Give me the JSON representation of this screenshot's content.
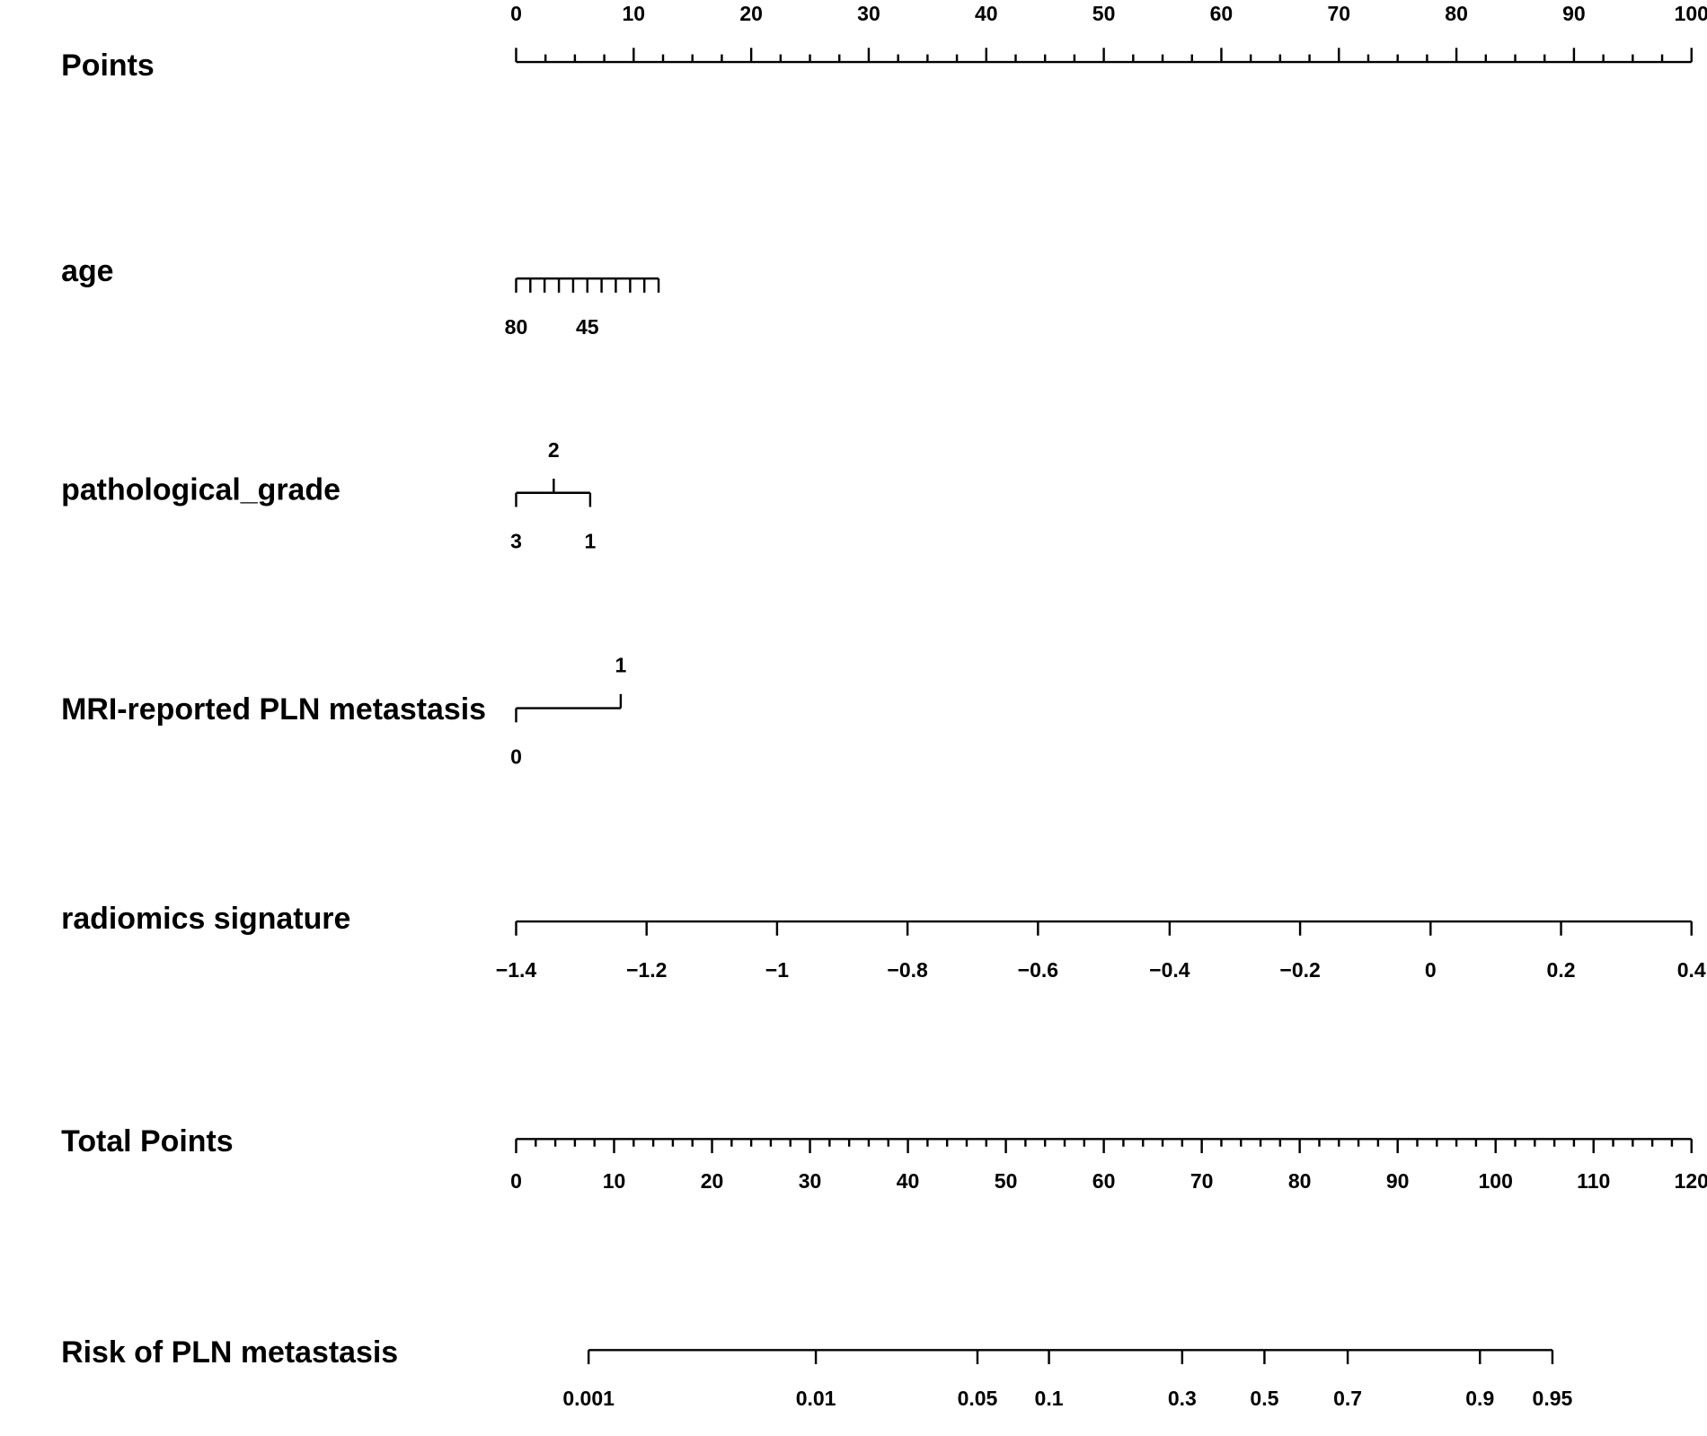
{
  "chart_data": {
    "type": "nomogram",
    "axes": [
      {
        "name": "Points",
        "xlim": [
          0,
          100
        ],
        "xticks": [
          0,
          10,
          20,
          30,
          40,
          50,
          60,
          70,
          80,
          90,
          100
        ],
        "minor_ticks": [
          2.5,
          5,
          7.5,
          12.5,
          15,
          17.5,
          22.5,
          25,
          27.5,
          32.5,
          35,
          37.5,
          42.5,
          45,
          47.5,
          52.5,
          55,
          57.5,
          62.5,
          65,
          67.5,
          72.5,
          75,
          77.5,
          82.5,
          85,
          87.5,
          92.5,
          95,
          97.5
        ]
      },
      {
        "name": "age",
        "labels": [
          80,
          null,
          null,
          null,
          null,
          45,
          null,
          null,
          null,
          null,
          null
        ],
        "points": [
          0,
          1.21,
          2.42,
          3.64,
          4.85,
          6.06,
          7.27,
          8.48,
          9.7,
          10.91,
          12.12
        ]
      },
      {
        "name": "pathological_grade",
        "labels": [
          3,
          2,
          1
        ],
        "points": [
          0,
          3.2,
          6.3
        ],
        "label_position": [
          "below",
          "above",
          "below"
        ]
      },
      {
        "name": "MRI-reported PLN metastasis",
        "labels": [
          0,
          1
        ],
        "points": [
          0,
          8.9
        ],
        "label_position": [
          "below",
          "above"
        ]
      },
      {
        "name": "radiomics signature",
        "labels": [
          "−1.4",
          "−1.2",
          "−1",
          "−0.8",
          "−0.6",
          "−0.4",
          "−0.2",
          0,
          0.2,
          0.4
        ],
        "points": [
          0,
          11.1,
          22.2,
          33.3,
          44.4,
          55.6,
          66.7,
          77.8,
          88.9,
          100
        ]
      },
      {
        "name": "Total Points",
        "xlim": [
          0,
          120
        ],
        "xticks": [
          0,
          10,
          20,
          30,
          40,
          50,
          60,
          70,
          80,
          90,
          100,
          110,
          120
        ],
        "minor_ticks": [
          2,
          4,
          6,
          8,
          12,
          14,
          16,
          18,
          22,
          24,
          26,
          28,
          32,
          34,
          36,
          38,
          42,
          44,
          46,
          48,
          52,
          54,
          56,
          58,
          62,
          64,
          66,
          68,
          72,
          74,
          76,
          78,
          82,
          84,
          86,
          88,
          92,
          94,
          96,
          98,
          102,
          104,
          106,
          108,
          112,
          114,
          116,
          118
        ]
      },
      {
        "name": "Risk of PLN metastasis",
        "labels": [
          0.001,
          0.01,
          0.05,
          0.1,
          0.3,
          0.5,
          0.7,
          0.9,
          0.95
        ],
        "total_points": [
          7.4,
          30.6,
          47.1,
          54.4,
          68.0,
          76.4,
          84.9,
          98.4,
          105.8
        ]
      }
    ]
  }
}
